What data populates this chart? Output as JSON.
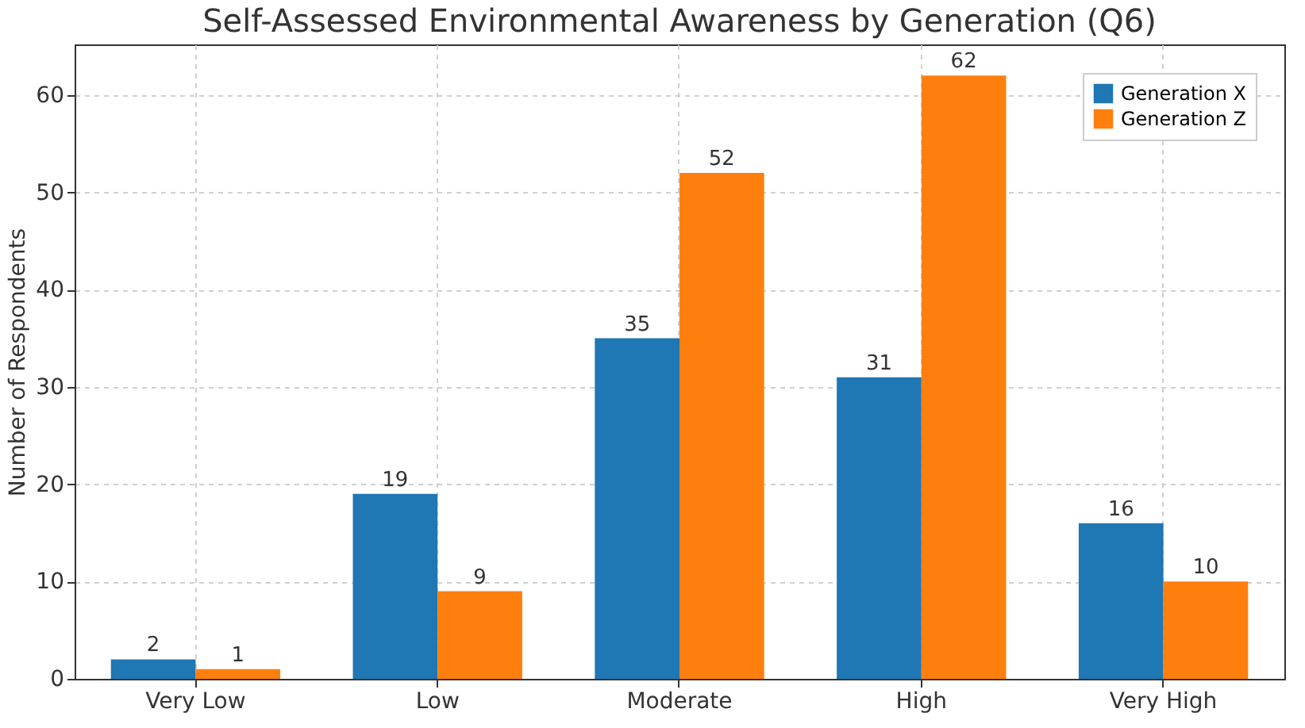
{
  "chart_data": {
    "type": "bar",
    "title": "Self-Assessed Environmental Awareness by Generation (Q6)",
    "ylabel": "Number of Respondents",
    "categories": [
      "Very Low",
      "Low",
      "Moderate",
      "High",
      "Very High"
    ],
    "series": [
      {
        "name": "Generation X",
        "color": "#1f77b4",
        "values": [
          2,
          19,
          35,
          31,
          16
        ]
      },
      {
        "name": "Generation Z",
        "color": "#ff7f0e",
        "values": [
          1,
          9,
          52,
          62,
          10
        ]
      }
    ],
    "ylim": [
      0,
      65.2
    ],
    "yticks": [
      0,
      10,
      20,
      30,
      40,
      50,
      60
    ],
    "grid": true,
    "legend": "top right",
    "data_labels": true
  }
}
